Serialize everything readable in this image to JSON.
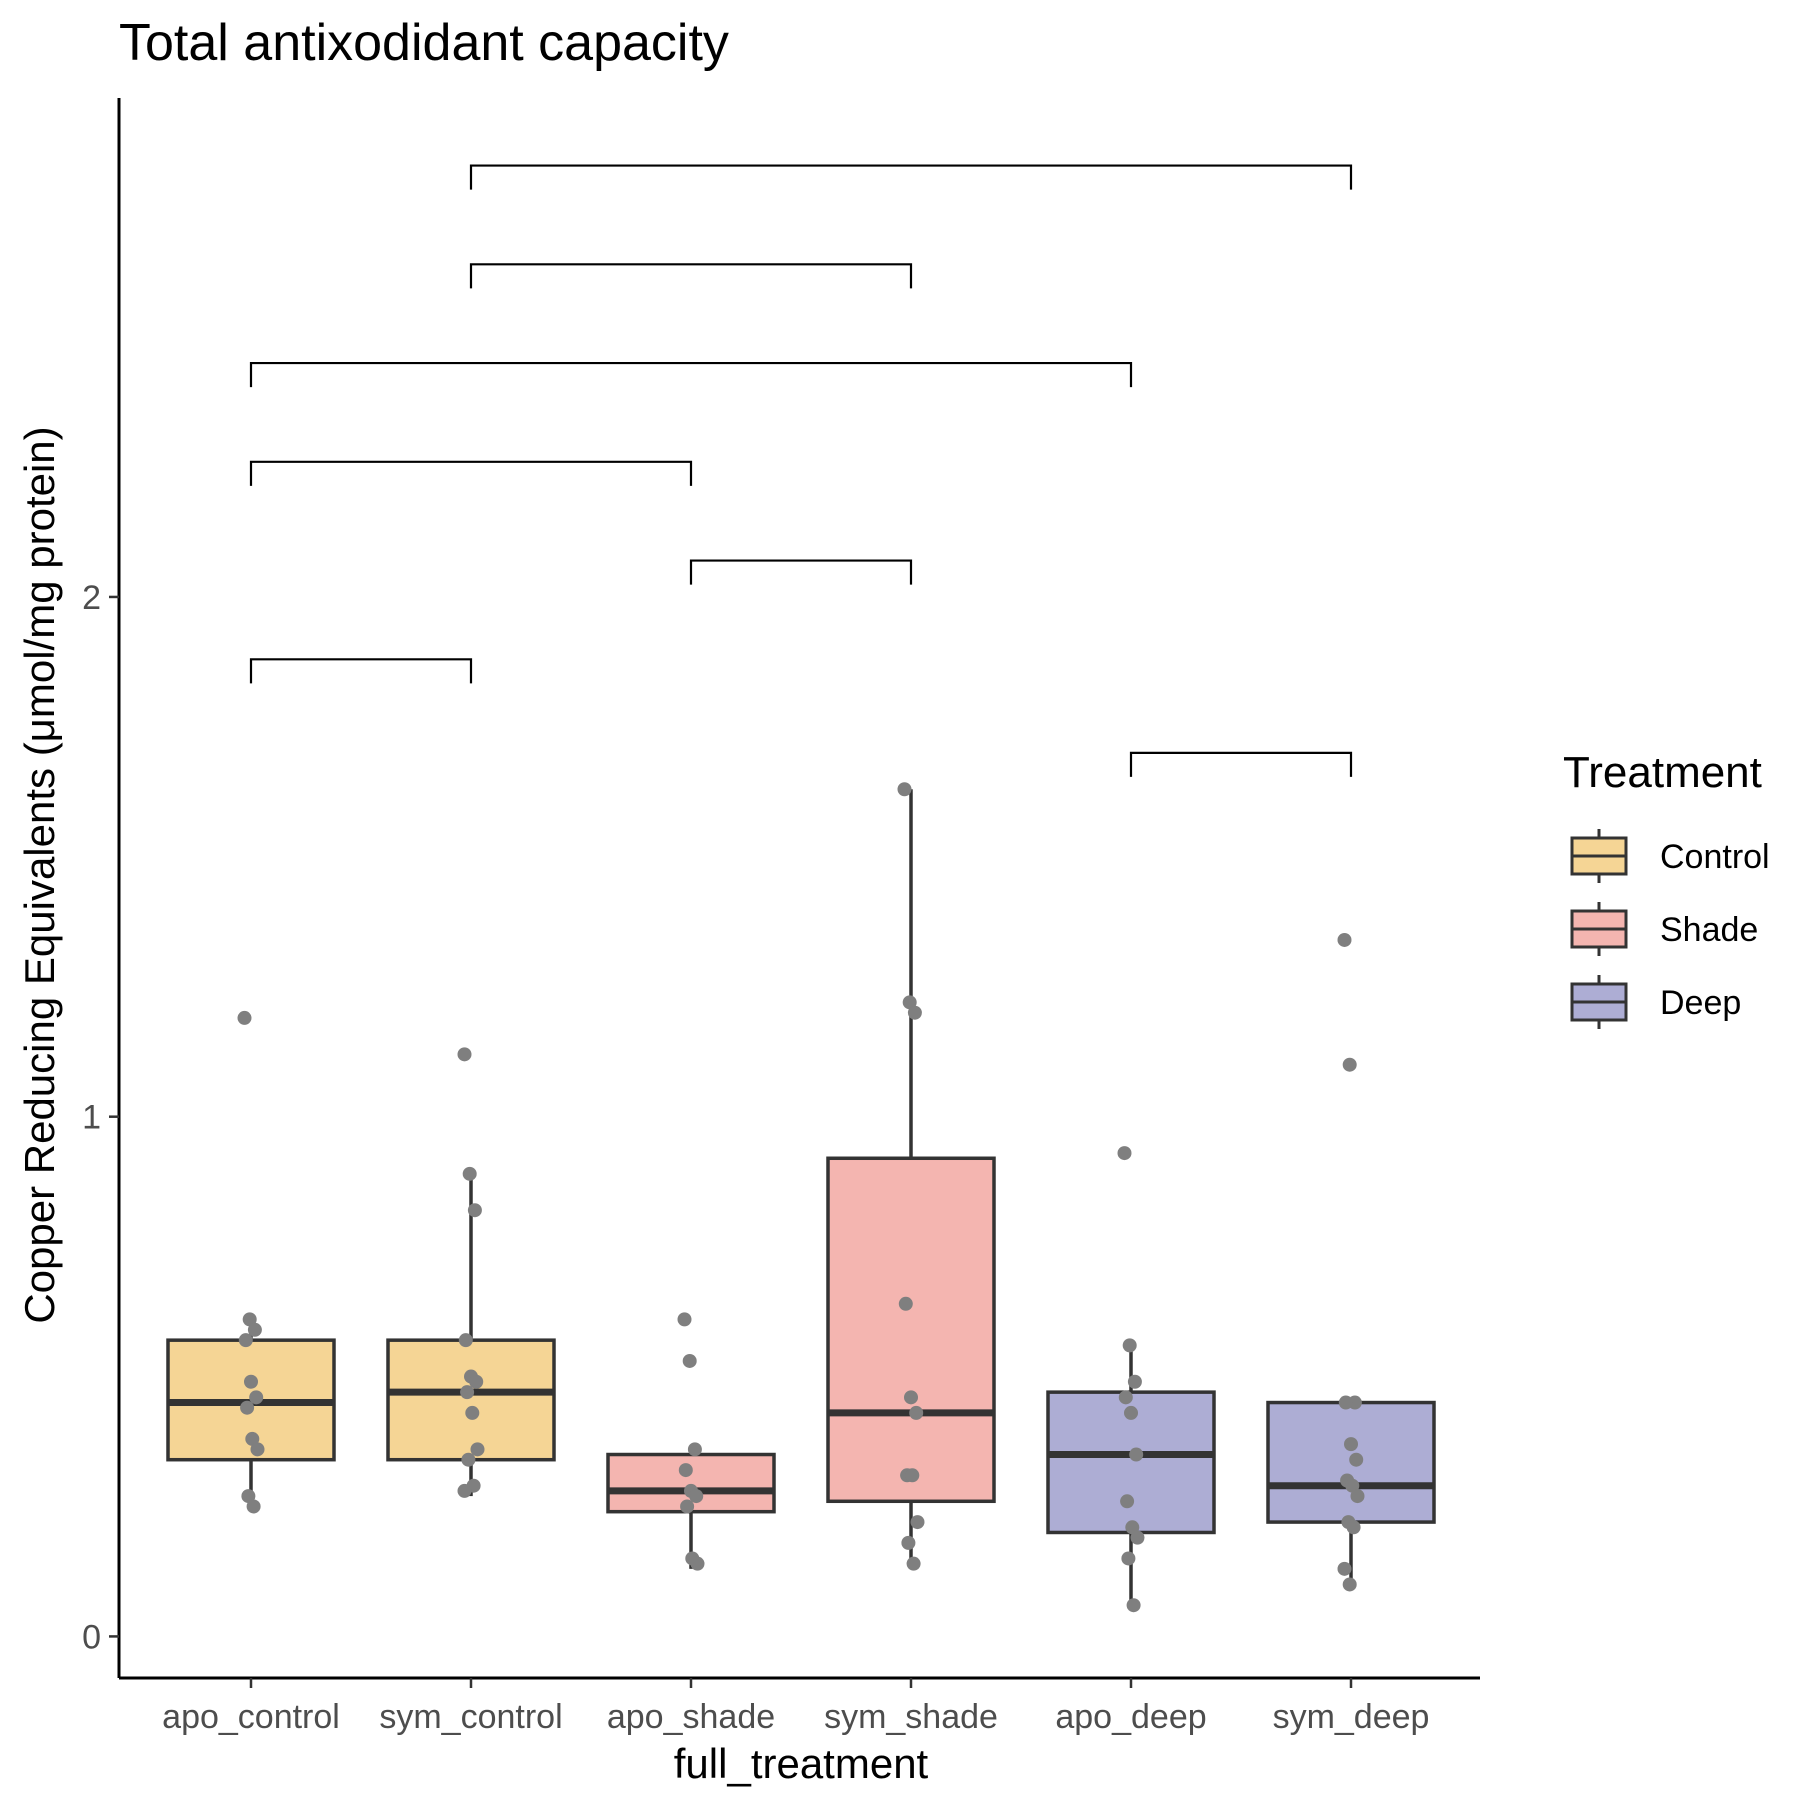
{
  "chart_data": {
    "type": "box",
    "title": "Total antixodidant capacity",
    "xlabel": "full_treatment",
    "ylabel": "Copper Reducing Equivalents (μmol/mg protein)",
    "ylim": [
      -0.08,
      2.96
    ],
    "yticks": [
      0,
      1,
      2
    ],
    "categories": [
      "apo_control",
      "sym_control",
      "apo_shade",
      "sym_shade",
      "apo_deep",
      "sym_deep"
    ],
    "groups": [
      "Control",
      "Control",
      "Shade",
      "Shade",
      "Deep",
      "Deep"
    ],
    "legend": {
      "title": "Treatment",
      "position": "right",
      "entries": [
        "Control",
        "Shade",
        "Deep"
      ]
    },
    "colors": {
      "Control": "#f5d595",
      "Shade": "#f4b5b0",
      "Deep": "#adadd4",
      "box_stroke": "#333333",
      "point": "#7f7f7f"
    },
    "grid": false,
    "boxes": [
      {
        "name": "apo_control",
        "lower_whisker": 0.25,
        "q1": 0.34,
        "median": 0.45,
        "q3": 0.57,
        "upper_whisker": 0.61
      },
      {
        "name": "sym_control",
        "lower_whisker": 0.27,
        "q1": 0.34,
        "median": 0.47,
        "q3": 0.57,
        "upper_whisker": 0.89
      },
      {
        "name": "apo_shade",
        "lower_whisker": 0.13,
        "q1": 0.24,
        "median": 0.28,
        "q3": 0.35,
        "upper_whisker": 0.35
      },
      {
        "name": "sym_shade",
        "lower_whisker": 0.14,
        "q1": 0.26,
        "median": 0.43,
        "q3": 0.92,
        "upper_whisker": 1.63
      },
      {
        "name": "apo_deep",
        "lower_whisker": 0.06,
        "q1": 0.2,
        "median": 0.35,
        "q3": 0.47,
        "upper_whisker": 0.56
      },
      {
        "name": "sym_deep",
        "lower_whisker": 0.1,
        "q1": 0.22,
        "median": 0.29,
        "q3": 0.45,
        "upper_whisker": 0.45
      }
    ],
    "points": [
      {
        "name": "apo_control",
        "values": [
          1.19,
          0.61,
          0.59,
          0.57,
          0.49,
          0.46,
          0.44,
          0.38,
          0.36,
          0.27,
          0.25
        ]
      },
      {
        "name": "sym_control",
        "values": [
          1.12,
          0.89,
          0.82,
          0.57,
          0.5,
          0.49,
          0.47,
          0.43,
          0.36,
          0.34,
          0.29,
          0.28
        ]
      },
      {
        "name": "apo_shade",
        "values": [
          0.61,
          0.53,
          0.36,
          0.32,
          0.28,
          0.27,
          0.25,
          0.15,
          0.14
        ]
      },
      {
        "name": "sym_shade",
        "values": [
          1.63,
          1.22,
          1.2,
          0.64,
          0.46,
          0.43,
          0.31,
          0.31,
          0.22,
          0.18,
          0.14
        ]
      },
      {
        "name": "apo_deep",
        "values": [
          0.93,
          0.56,
          0.49,
          0.46,
          0.43,
          0.35,
          0.26,
          0.21,
          0.19,
          0.15,
          0.06
        ]
      },
      {
        "name": "sym_deep",
        "values": [
          1.34,
          1.1,
          0.45,
          0.45,
          0.37,
          0.34,
          0.3,
          0.29,
          0.27,
          0.22,
          0.21,
          0.13,
          0.1
        ]
      }
    ],
    "brackets": [
      {
        "from": "apo_control",
        "to": "sym_control",
        "y": 1.88
      },
      {
        "from": "apo_shade",
        "to": "sym_shade",
        "y": 2.07
      },
      {
        "from": "apo_control",
        "to": "apo_shade",
        "y": 2.26
      },
      {
        "from": "apo_control",
        "to": "apo_deep",
        "y": 2.45
      },
      {
        "from": "sym_control",
        "to": "sym_shade",
        "y": 2.64
      },
      {
        "from": "sym_control",
        "to": "sym_deep",
        "y": 2.83
      },
      {
        "from": "apo_deep",
        "to": "sym_deep",
        "y": 1.7
      }
    ]
  }
}
